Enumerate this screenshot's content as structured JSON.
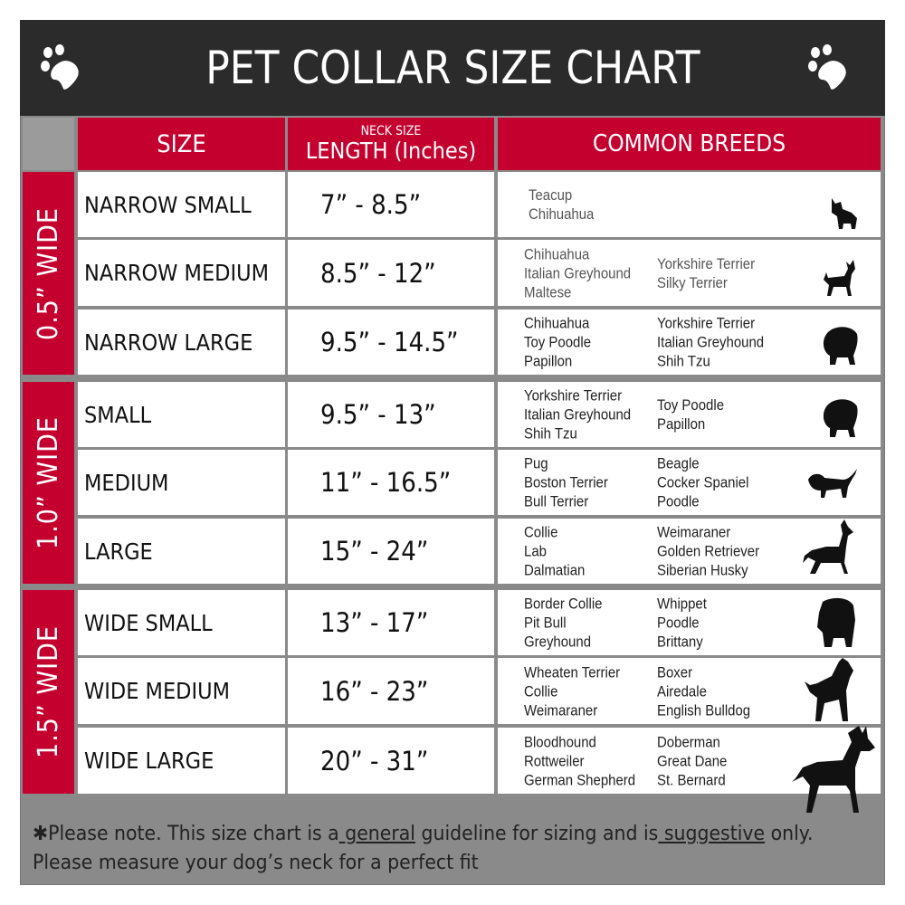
{
  "title": "PET COLLAR SIZE CHART",
  "colors": {
    "title_bg": "#2b2b2b",
    "accent_red": "#c4002f",
    "footer_bg": "#8a8a8a"
  },
  "headers": {
    "size": "SIZE",
    "neck_size": "NECK SIZE",
    "length": "LENGTH (Inches)",
    "breeds": "COMMON BREEDS"
  },
  "groups": [
    {
      "label": "0.5” WIDE",
      "rows": [
        {
          "size": "NARROW SMALL",
          "length": "7” - 8.5”",
          "breeds_left": [
            "Teacup",
            "Chihuahua"
          ],
          "breeds_right": [],
          "icon": "yorkie-silhouette-icon"
        },
        {
          "size": "NARROW MEDIUM",
          "length": "8.5” - 12”",
          "breeds_left": [
            "Chihuahua",
            "Italian Greyhound",
            "Maltese"
          ],
          "breeds_right": [
            "Yorkshire Terrier",
            "Silky Terrier"
          ],
          "icon": "chihuahua-silhouette-icon"
        },
        {
          "size": "NARROW LARGE",
          "length": "9.5” - 14.5”",
          "breeds_left": [
            "Chihuahua",
            "Toy Poodle",
            "Papillon"
          ],
          "breeds_right": [
            "Yorkshire Terrier",
            "Italian Greyhound",
            "Shih Tzu"
          ],
          "icon": "pomeranian-silhouette-icon"
        }
      ]
    },
    {
      "label": "1.0” WIDE",
      "rows": [
        {
          "size": "SMALL",
          "length": "9.5” - 13”",
          "breeds_left": [
            "Yorkshire Terrier",
            "Italian Greyhound",
            "Shih Tzu"
          ],
          "breeds_right": [
            "Toy Poodle",
            "Papillon"
          ],
          "icon": "pomeranian-silhouette-icon"
        },
        {
          "size": "MEDIUM",
          "length": "11” - 16.5”",
          "breeds_left": [
            "Pug",
            "Boston Terrier",
            "Bull Terrier"
          ],
          "breeds_right": [
            "Beagle",
            "Cocker Spaniel",
            "Poodle"
          ],
          "icon": "spaniel-silhouette-icon"
        },
        {
          "size": "LARGE",
          "length": "15” - 24”",
          "breeds_left": [
            "Collie",
            "Lab",
            "Dalmatian"
          ],
          "breeds_right": [
            "Weimaraner",
            "Golden Retriever",
            "Siberian Husky"
          ],
          "icon": "shepherd-silhouette-icon"
        }
      ]
    },
    {
      "label": "1.5” WIDE",
      "rows": [
        {
          "size": "WIDE SMALL",
          "length": "13” - 17”",
          "breeds_left": [
            "Border Collie",
            "Pit Bull",
            "Greyhound"
          ],
          "breeds_right": [
            "Whippet",
            "Poodle",
            "Brittany"
          ],
          "icon": "bulldog-silhouette-icon"
        },
        {
          "size": "WIDE MEDIUM",
          "length": "16” - 23”",
          "breeds_left": [
            "Wheaten Terrier",
            "Collie",
            "Weimaraner"
          ],
          "breeds_right": [
            "Boxer",
            "Airedale",
            "English Bulldog"
          ],
          "icon": "pitbull-silhouette-icon"
        },
        {
          "size": "WIDE LARGE",
          "length": "20” - 31”",
          "breeds_left": [
            "Bloodhound",
            "Rottweiler",
            "German Shepherd"
          ],
          "breeds_right": [
            "Doberman",
            "Great Dane",
            "St. Bernard"
          ],
          "icon": "doberman-silhouette-icon"
        }
      ]
    }
  ],
  "footer": {
    "part1": "✱Please note. This size chart is a",
    "general": " general",
    "part2": " guideline for sizing and is",
    "suggestive": " suggestive",
    "part3": " only.",
    "line2": "Please measure your dog’s neck for a perfect fit"
  }
}
